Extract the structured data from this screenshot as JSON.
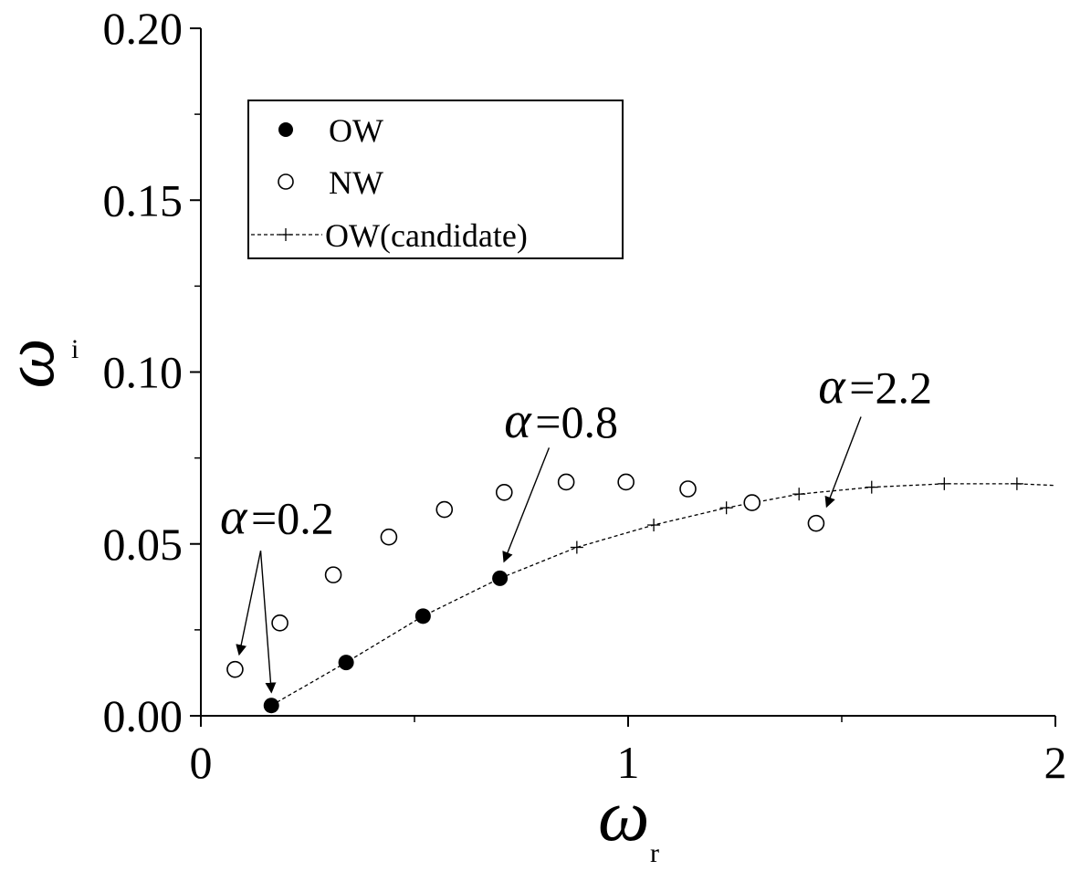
{
  "chart_data": {
    "type": "scatter",
    "xlabel": {
      "symbol": "ω",
      "subscript": "r"
    },
    "ylabel": {
      "symbol": "ω",
      "subscript": "i"
    },
    "xlim": [
      0,
      2
    ],
    "ylim": [
      0,
      0.2
    ],
    "x_ticks": [
      {
        "value": 0,
        "label": "0"
      },
      {
        "value": 1,
        "label": "1"
      },
      {
        "value": 2,
        "label": "2"
      }
    ],
    "x_minor_ticks": [
      0.5,
      1.5
    ],
    "y_ticks": [
      {
        "value": 0,
        "label": "0.00"
      },
      {
        "value": 0.05,
        "label": "0.05"
      },
      {
        "value": 0.1,
        "label": "0.10"
      },
      {
        "value": 0.15,
        "label": "0.15"
      },
      {
        "value": 0.2,
        "label": "0.20"
      }
    ],
    "y_minor_ticks": [
      0.025,
      0.075,
      0.125,
      0.175
    ],
    "grid": false,
    "legend_position": "top-left",
    "series": [
      {
        "name": "OW",
        "marker": "filled-circle",
        "points": [
          [
            0.165,
            0.003
          ],
          [
            0.34,
            0.0155
          ],
          [
            0.52,
            0.029
          ],
          [
            0.7,
            0.04
          ]
        ]
      },
      {
        "name": "NW",
        "marker": "open-circle",
        "points": [
          [
            0.08,
            0.0135
          ],
          [
            0.185,
            0.027
          ],
          [
            0.31,
            0.041
          ],
          [
            0.44,
            0.052
          ],
          [
            0.57,
            0.06
          ],
          [
            0.71,
            0.065
          ],
          [
            0.855,
            0.068
          ],
          [
            0.995,
            0.068
          ],
          [
            1.14,
            0.066
          ],
          [
            1.29,
            0.062
          ],
          [
            1.44,
            0.056
          ]
        ]
      },
      {
        "name": "OW(candidate)",
        "marker": "plus",
        "line": "dashed",
        "points": [
          [
            0.165,
            0.003
          ],
          [
            0.34,
            0.0155
          ],
          [
            0.52,
            0.029
          ],
          [
            0.7,
            0.04
          ],
          [
            0.88,
            0.049
          ],
          [
            1.06,
            0.0555
          ],
          [
            1.23,
            0.0605
          ],
          [
            1.4,
            0.0645
          ],
          [
            1.57,
            0.0665
          ],
          [
            1.74,
            0.0675
          ],
          [
            1.91,
            0.0675
          ],
          [
            2.0,
            0.067
          ]
        ]
      }
    ],
    "annotations": [
      {
        "symbol": "α",
        "text": "=0.2",
        "text_at": [
          0.045,
          0.053
        ],
        "arrows_from": [
          0.14,
          0.048
        ],
        "arrows_to": [
          [
            0.09,
            0.018
          ],
          [
            0.165,
            0.007
          ]
        ]
      },
      {
        "symbol": "α",
        "text": "=0.8",
        "text_at": [
          0.71,
          0.081
        ],
        "arrows_from": [
          0.815,
          0.078
        ],
        "arrows_to": [
          [
            0.71,
            0.045
          ]
        ]
      },
      {
        "symbol": "α",
        "text": "=2.2",
        "text_at": [
          1.445,
          0.091
        ],
        "arrows_from": [
          1.545,
          0.087
        ],
        "arrows_to": [
          [
            1.465,
            0.061
          ]
        ]
      }
    ]
  }
}
